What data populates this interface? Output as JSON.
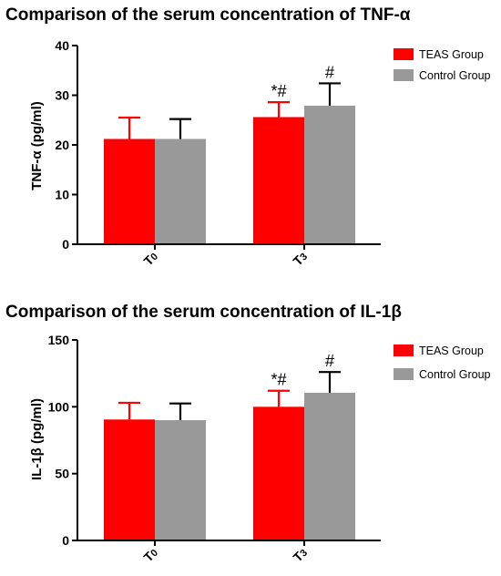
{
  "chart_data": [
    {
      "type": "bar",
      "title": "Comparison of the serum concentration of TNF-α",
      "ylabel": "TNF-α (pg/ml)",
      "categories": [
        "T0",
        "T3"
      ],
      "ylim": [
        0,
        40
      ],
      "yticks": [
        0,
        10,
        20,
        30,
        40
      ],
      "series": [
        {
          "name": "TEAS Group",
          "color": "#ff0000",
          "values": [
            21.2,
            25.6
          ],
          "errors": [
            4.3,
            3.0
          ]
        },
        {
          "name": "Control Group",
          "color": "#999999",
          "values": [
            21.2,
            27.9
          ],
          "errors": [
            4.0,
            4.5
          ]
        }
      ],
      "annotations": [
        {
          "category": "T3",
          "series": "TEAS Group",
          "text": "*#"
        },
        {
          "category": "T3",
          "series": "Control Group",
          "text": "#"
        }
      ],
      "legend": "top-right",
      "grid": false
    },
    {
      "type": "bar",
      "title": "Comparison of the serum concentration of  IL-1β",
      "ylabel": "IL-1β (pg/ml)",
      "categories": [
        "T0",
        "T3"
      ],
      "ylim": [
        0,
        150
      ],
      "yticks": [
        0,
        50,
        100,
        150
      ],
      "series": [
        {
          "name": "TEAS Group",
          "color": "#ff0000",
          "values": [
            90.5,
            100.0
          ],
          "errors": [
            12.5,
            12.0
          ]
        },
        {
          "name": "Control Group",
          "color": "#999999",
          "values": [
            90.0,
            110.5
          ],
          "errors": [
            12.5,
            15.5
          ]
        }
      ],
      "annotations": [
        {
          "category": "T3",
          "series": "TEAS Group",
          "text": "*#"
        },
        {
          "category": "T3",
          "series": "Control Group",
          "text": "#"
        }
      ],
      "legend": "top-right",
      "grid": false
    }
  ]
}
